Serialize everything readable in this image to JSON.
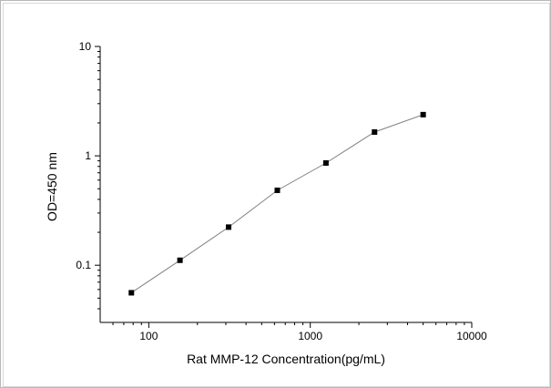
{
  "chart_data": {
    "type": "scatter",
    "x_scale": "log",
    "y_scale": "log",
    "xlabel": "Rat MMP-12 Concentration(pg/mL)",
    "ylabel": "OD=450 nm",
    "xlim": [
      50,
      10000
    ],
    "ylim": [
      0.03,
      10
    ],
    "x_ticks": [
      100,
      1000,
      10000
    ],
    "x_tick_labels": [
      "100",
      "1000",
      "10000"
    ],
    "y_ticks": [
      0.1,
      1,
      10
    ],
    "y_tick_labels": [
      "0.1",
      "1",
      "10"
    ],
    "grid": false,
    "series": [
      {
        "x": [
          78,
          156,
          312,
          625,
          1250,
          2500,
          5000
        ],
        "y": [
          0.056,
          0.111,
          0.223,
          0.484,
          0.86,
          1.65,
          2.38
        ],
        "marker": "square",
        "line": true
      }
    ],
    "colors": {
      "marker": "#000000",
      "line": "#808080",
      "axis": "#000000"
    }
  }
}
